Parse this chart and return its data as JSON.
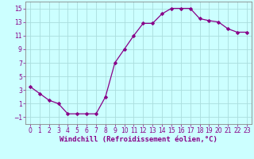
{
  "x": [
    0,
    1,
    2,
    3,
    4,
    5,
    6,
    7,
    8,
    9,
    10,
    11,
    12,
    13,
    14,
    15,
    16,
    17,
    18,
    19,
    20,
    21,
    22,
    23
  ],
  "y": [
    3.5,
    2.5,
    1.5,
    1.0,
    -0.5,
    -0.5,
    -0.5,
    -0.5,
    2.0,
    7.0,
    9.0,
    11.0,
    12.8,
    12.8,
    14.2,
    15.0,
    15.0,
    15.0,
    13.5,
    13.2,
    13.0,
    12.0,
    11.5,
    11.5
  ],
  "line_color": "#880088",
  "marker": "D",
  "marker_size": 2.0,
  "line_width": 0.9,
  "background_color": "#ccffff",
  "grid_color": "#aadddd",
  "xlabel": "Windchill (Refroidissement éolien,°C)",
  "xlim": [
    -0.5,
    23.5
  ],
  "ylim": [
    -2,
    16
  ],
  "yticks": [
    -1,
    1,
    3,
    5,
    7,
    9,
    11,
    13,
    15
  ],
  "xticks": [
    0,
    1,
    2,
    3,
    4,
    5,
    6,
    7,
    8,
    9,
    10,
    11,
    12,
    13,
    14,
    15,
    16,
    17,
    18,
    19,
    20,
    21,
    22,
    23
  ],
  "tick_fontsize": 5.5,
  "xlabel_fontsize": 6.5,
  "tick_color": "#880088",
  "spine_color": "#888888"
}
